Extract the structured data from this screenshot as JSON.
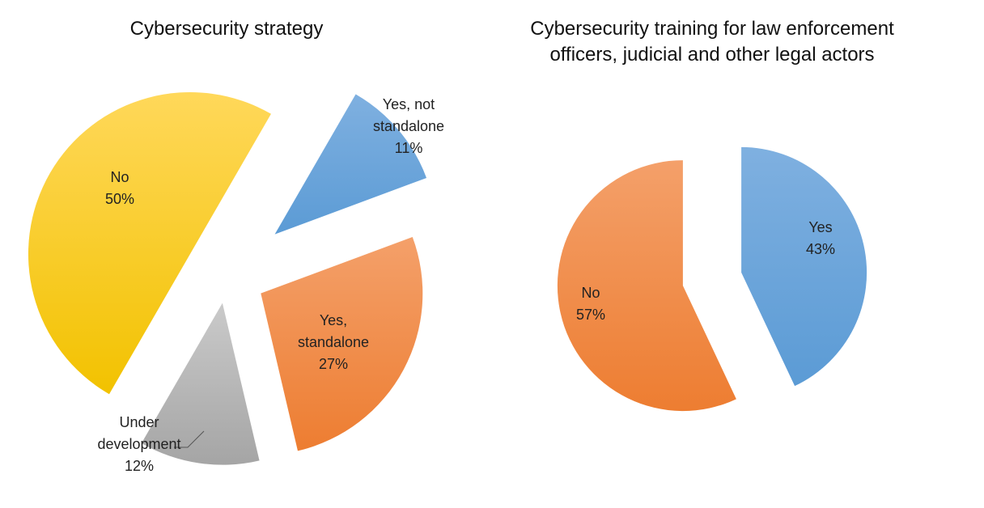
{
  "chart_data": [
    {
      "type": "pie",
      "title": "Cybersecurity strategy",
      "exploded": true,
      "slices": [
        {
          "label": [
            "Yes, not",
            "standalone"
          ],
          "pct": "11%",
          "value": 11,
          "color": "#5b9bd5",
          "color_light": "#7fb0e0"
        },
        {
          "label": [
            "Yes,",
            "standalone"
          ],
          "pct": "27%",
          "value": 27,
          "color": "#ed7d31",
          "color_light": "#f4a06a"
        },
        {
          "label": [
            "Under",
            "development"
          ],
          "pct": "12%",
          "value": 12,
          "color": "#a5a5a5",
          "color_light": "#cacaca"
        },
        {
          "label": [
            "No"
          ],
          "pct": "50%",
          "value": 50,
          "color": "#f2c200",
          "color_light": "#ffd85a"
        }
      ]
    },
    {
      "type": "pie",
      "title": "Cybersecurity training for law enforcement officers, judicial and other legal actors",
      "exploded": true,
      "slices": [
        {
          "label": [
            "Yes"
          ],
          "pct": "43%",
          "value": 43,
          "color": "#5b9bd5",
          "color_light": "#7fb0e0"
        },
        {
          "label": [
            "No"
          ],
          "pct": "57%",
          "value": 57,
          "color": "#ed7d31",
          "color_light": "#f4a06a"
        }
      ]
    }
  ]
}
